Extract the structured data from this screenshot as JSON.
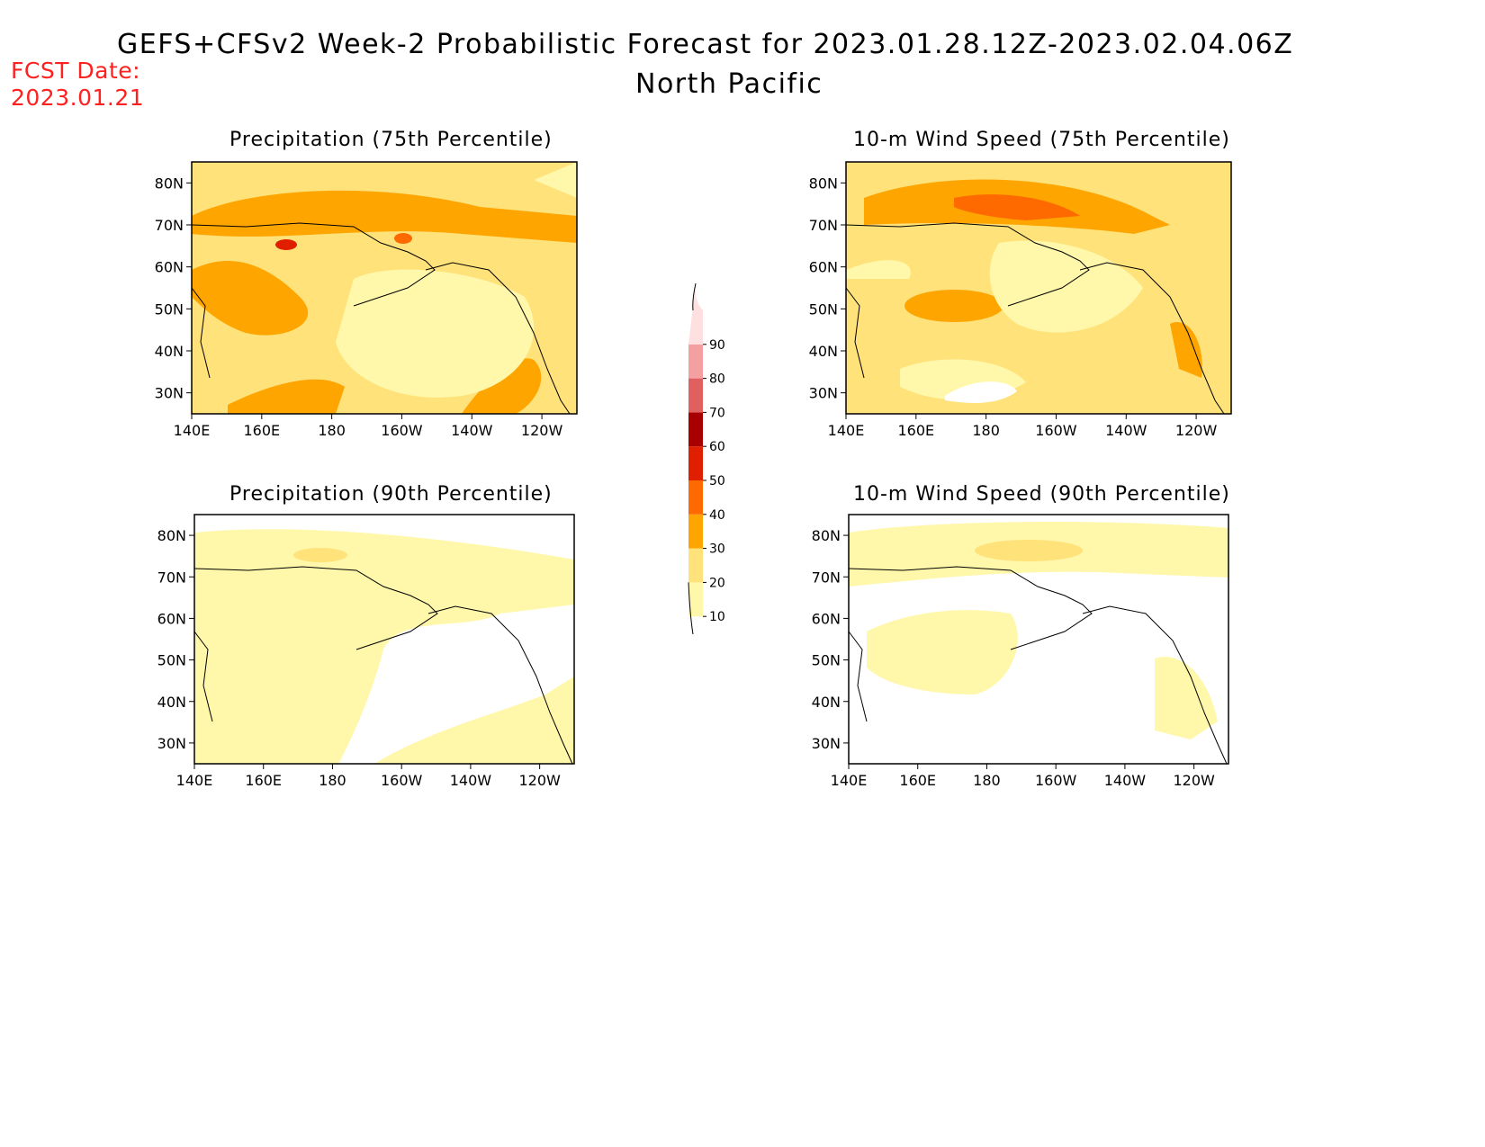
{
  "header": {
    "title": "GEFS+CFSv2 Week-2 Probabilistic Forecast for 2023.01.28.12Z-2023.02.04.06Z",
    "subtitle": "North Pacific",
    "fcst_label": "FCST Date:",
    "fcst_date": "2023.01.21"
  },
  "axes": {
    "lat_labels": [
      "80N",
      "70N",
      "60N",
      "50N",
      "40N",
      "30N"
    ],
    "lon_labels": [
      "140E",
      "160E",
      "180",
      "160W",
      "140W",
      "120W"
    ]
  },
  "panels": [
    {
      "title": "Precipitation (75th Percentile)"
    },
    {
      "title": "10-m Wind Speed (75th Percentile)"
    },
    {
      "title": "Precipitation (90th Percentile)"
    },
    {
      "title": "10-m Wind Speed (90th Percentile)"
    }
  ],
  "colorbar": {
    "levels": [
      "10",
      "20",
      "30",
      "40",
      "50",
      "60",
      "70",
      "80",
      "90"
    ],
    "colors": [
      "#fff7aa",
      "#ffe27a",
      "#ffa500",
      "#ff6a00",
      "#e01e00",
      "#a80000",
      "#e06060",
      "#f4a0a0",
      "#ffe0e0"
    ]
  },
  "colors": {
    "title": "#000000",
    "fcst": "#ff2020",
    "ocean_none": "#ffffff"
  }
}
